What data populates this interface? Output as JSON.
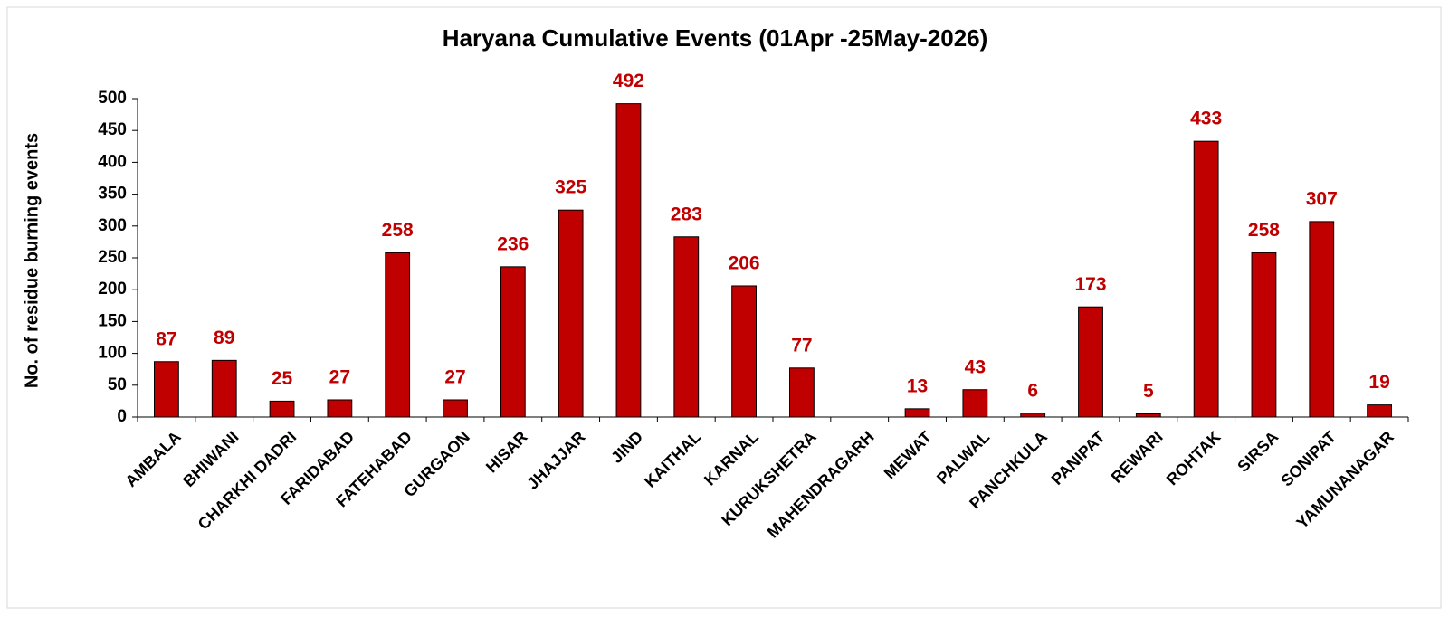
{
  "chart_data": {
    "type": "bar",
    "title": "Haryana Cumulative Events (01Apr -25May-2026)",
    "y_label": "No. of residue burning events",
    "categories": [
      "AMBALA",
      "BHIWANI",
      "CHARKHI DADRI",
      "FARIDABAD",
      "FATEHABAD",
      "GURGAON",
      "HISAR",
      "JHAJJAR",
      "JIND",
      "KAITHAL",
      "KARNAL",
      "KURUKSHETRA",
      "MAHENDRAGARH",
      "MEWAT",
      "PALWAL",
      "PANCHKULA",
      "PANIPAT",
      "REWARI",
      "ROHTAK",
      "SIRSA",
      "SONIPAT",
      "YAMUNANAGAR"
    ],
    "values": [
      87,
      89,
      25,
      27,
      258,
      27,
      236,
      325,
      492,
      283,
      206,
      77,
      null,
      13,
      43,
      6,
      173,
      5,
      433,
      258,
      307,
      19
    ],
    "color": "#c00000",
    "label_color": "#c00000",
    "ylim": [
      0,
      500
    ],
    "yticks": [
      0,
      50,
      100,
      150,
      200,
      250,
      300,
      350,
      400,
      450,
      500
    ],
    "grid": false
  }
}
